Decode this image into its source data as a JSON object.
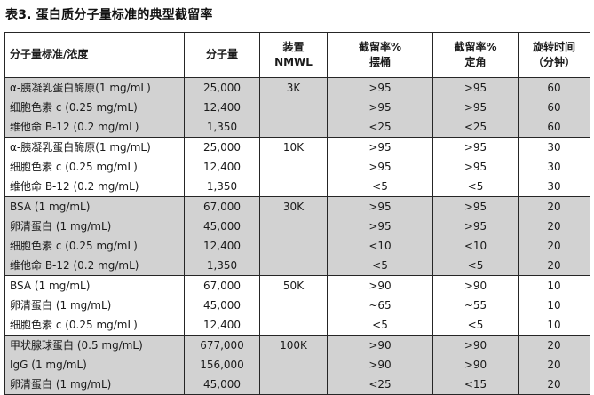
{
  "title": "表3. 蛋白质分子量标准的典型截留率",
  "columns": [
    "分子量标准/浓度",
    "分子量",
    "装置\nNMWL",
    "截留率%\n摆桶",
    "截留率%\n定角",
    "旋转时间\n（分钟）"
  ],
  "groups": [
    {
      "nmwl": "3K",
      "shaded": true,
      "rows": [
        {
          "standard": "α-胰凝乳蛋白酶原(1 mg/mL)",
          "mw": "25,000",
          "swing": ">95",
          "fixed": ">95",
          "time": "60"
        },
        {
          "standard": "细胞色素 c (0.25 mg/mL)",
          "mw": "12,400",
          "swing": ">95",
          "fixed": ">95",
          "time": "60"
        },
        {
          "standard": "维他命 B-12 (0.2 mg/mL)",
          "mw": "1,350",
          "swing": "<25",
          "fixed": "<25",
          "time": "60"
        }
      ]
    },
    {
      "nmwl": "10K",
      "shaded": false,
      "rows": [
        {
          "standard": "α-胰凝乳蛋白酶原(1 mg/mL)",
          "mw": "25,000",
          "swing": ">95",
          "fixed": ">95",
          "time": "30"
        },
        {
          "standard": "细胞色素 c (0.25 mg/mL)",
          "mw": "12,400",
          "swing": ">95",
          "fixed": ">95",
          "time": "30"
        },
        {
          "standard": "维他命 B-12 (0.2 mg/mL)",
          "mw": "1,350",
          "swing": "<5",
          "fixed": "<5",
          "time": "30"
        }
      ]
    },
    {
      "nmwl": "30K",
      "shaded": true,
      "rows": [
        {
          "standard": "BSA (1 mg/mL)",
          "mw": "67,000",
          "swing": ">95",
          "fixed": ">95",
          "time": "20"
        },
        {
          "standard": "卵清蛋白 (1 mg/mL)",
          "mw": "45,000",
          "swing": ">95",
          "fixed": ">95",
          "time": "20"
        },
        {
          "standard": "细胞色素 c (0.25 mg/mL)",
          "mw": "12,400",
          "swing": "<10",
          "fixed": "<10",
          "time": "20"
        },
        {
          "standard": "维他命 B-12 (0.2 mg/mL)",
          "mw": "1,350",
          "swing": "<5",
          "fixed": "<5",
          "time": "20"
        }
      ]
    },
    {
      "nmwl": "50K",
      "shaded": false,
      "rows": [
        {
          "standard": "BSA (1 mg/mL)",
          "mw": "67,000",
          "swing": ">90",
          "fixed": ">90",
          "time": "10"
        },
        {
          "standard": "卵清蛋白 (1 mg/mL)",
          "mw": "45,000",
          "swing": "~65",
          "fixed": "~55",
          "time": "10"
        },
        {
          "standard": "细胞色素 c (0.25 mg/mL)",
          "mw": "12,400",
          "swing": "<5",
          "fixed": "<5",
          "time": "10"
        }
      ]
    },
    {
      "nmwl": "100K",
      "shaded": true,
      "rows": [
        {
          "standard": "甲状腺球蛋白 (0.5 mg/mL)",
          "mw": "677,000",
          "swing": ">90",
          "fixed": ">90",
          "time": "20"
        },
        {
          "standard": "IgG (1 mg/mL)",
          "mw": "156,000",
          "swing": ">90",
          "fixed": ">90",
          "time": "20"
        },
        {
          "standard": "卵清蛋白 (1 mg/mL)",
          "mw": "45,000",
          "swing": "<25",
          "fixed": "<15",
          "time": "20"
        }
      ]
    }
  ],
  "colors": {
    "shaded_row": "#d2d2d2",
    "border": "#262626",
    "text": "#1a1a1a"
  }
}
